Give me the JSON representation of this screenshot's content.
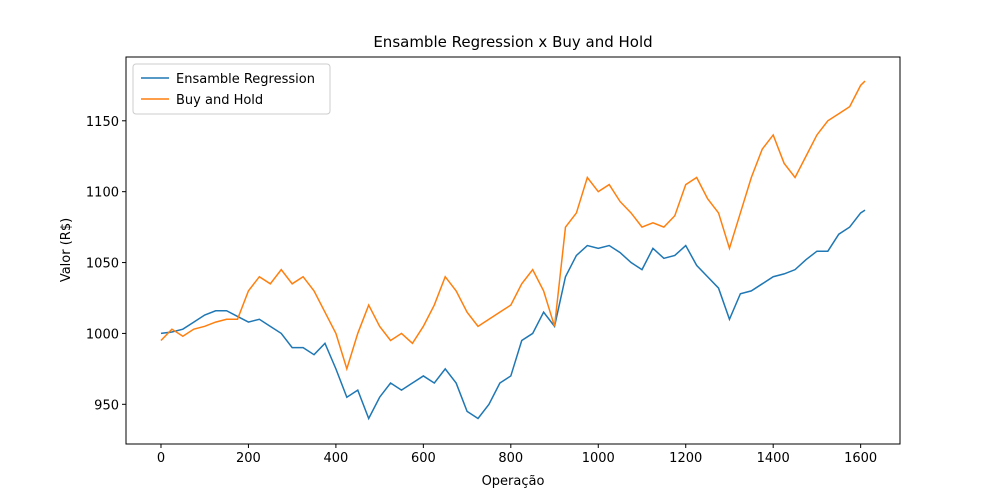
{
  "chart_data": {
    "type": "line",
    "title": "Ensamble Regression x Buy and Hold",
    "xlabel": "Operação",
    "ylabel": "Valor (R$)",
    "x": [
      0,
      25,
      50,
      75,
      100,
      125,
      150,
      175,
      200,
      225,
      250,
      275,
      300,
      325,
      350,
      375,
      400,
      425,
      450,
      475,
      500,
      525,
      550,
      575,
      600,
      625,
      650,
      675,
      700,
      725,
      750,
      775,
      800,
      825,
      850,
      875,
      900,
      925,
      950,
      975,
      1000,
      1025,
      1050,
      1075,
      1100,
      1125,
      1150,
      1175,
      1200,
      1225,
      1250,
      1275,
      1300,
      1325,
      1350,
      1375,
      1400,
      1425,
      1450,
      1475,
      1500,
      1525,
      1550,
      1575,
      1600,
      1610
    ],
    "series": [
      {
        "name": "Ensamble Regression",
        "color": "#1f77b4",
        "values": [
          1000,
          1001,
          1003,
          1008,
          1013,
          1016,
          1016,
          1012,
          1008,
          1010,
          1005,
          1000,
          990,
          990,
          985,
          993,
          975,
          955,
          960,
          940,
          955,
          965,
          960,
          965,
          970,
          965,
          975,
          965,
          945,
          940,
          950,
          965,
          970,
          995,
          1000,
          1015,
          1005,
          1040,
          1055,
          1062,
          1060,
          1062,
          1057,
          1050,
          1045,
          1060,
          1053,
          1055,
          1062,
          1048,
          1040,
          1032,
          1010,
          1028,
          1030,
          1035,
          1040,
          1042,
          1045,
          1052,
          1058,
          1058,
          1070,
          1075,
          1085,
          1087
        ]
      },
      {
        "name": "Buy and Hold",
        "color": "#ff7f0e",
        "values": [
          995,
          1003,
          998,
          1003,
          1005,
          1008,
          1010,
          1010,
          1030,
          1040,
          1035,
          1045,
          1035,
          1040,
          1030,
          1015,
          1000,
          975,
          1000,
          1020,
          1005,
          995,
          1000,
          993,
          1005,
          1020,
          1040,
          1030,
          1015,
          1005,
          1010,
          1015,
          1020,
          1035,
          1045,
          1030,
          1005,
          1075,
          1085,
          1110,
          1100,
          1105,
          1093,
          1085,
          1075,
          1078,
          1075,
          1083,
          1105,
          1110,
          1095,
          1085,
          1060,
          1085,
          1110,
          1130,
          1140,
          1120,
          1110,
          1125,
          1140,
          1150,
          1155,
          1160,
          1175,
          1178
        ]
      }
    ],
    "xlim": [
      -80,
      1690
    ],
    "ylim": [
      922,
      1195
    ],
    "xticks": [
      0,
      200,
      400,
      600,
      800,
      1000,
      1200,
      1400,
      1600
    ],
    "yticks": [
      950,
      1000,
      1050,
      1100,
      1150
    ],
    "legend": "upper left",
    "grid": false
  }
}
